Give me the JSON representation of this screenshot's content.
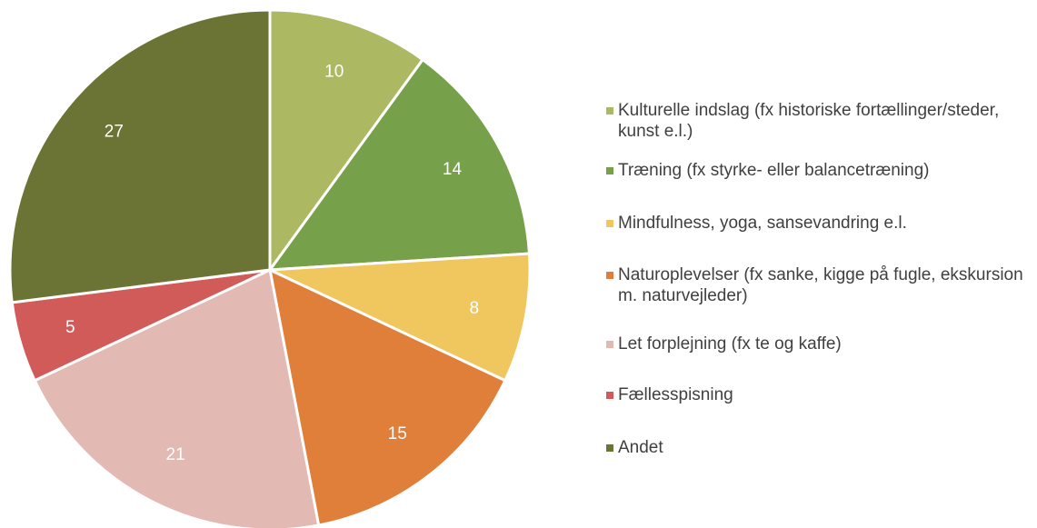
{
  "chart_data": {
    "type": "pie",
    "categories": [
      "Kulturelle indslag (fx historiske fortællinger/steder, kunst e.l.)",
      "Træning (fx styrke- eller balancetræning)",
      "Mindfulness, yoga, sansevandring e.l.",
      "Naturoplevelser (fx sanke, kigge på fugle, ekskursion m. naturvejleder)",
      "Let forplejning (fx te og kaffe)",
      "Fællesspisning",
      "Andet"
    ],
    "values": [
      10,
      14,
      8,
      15,
      21,
      5,
      27
    ],
    "colors": [
      "#adb962",
      "#77a04a",
      "#f0c75e",
      "#e07f3a",
      "#e2b9b3",
      "#d15b58",
      "#6b7434"
    ],
    "legend": "right"
  }
}
